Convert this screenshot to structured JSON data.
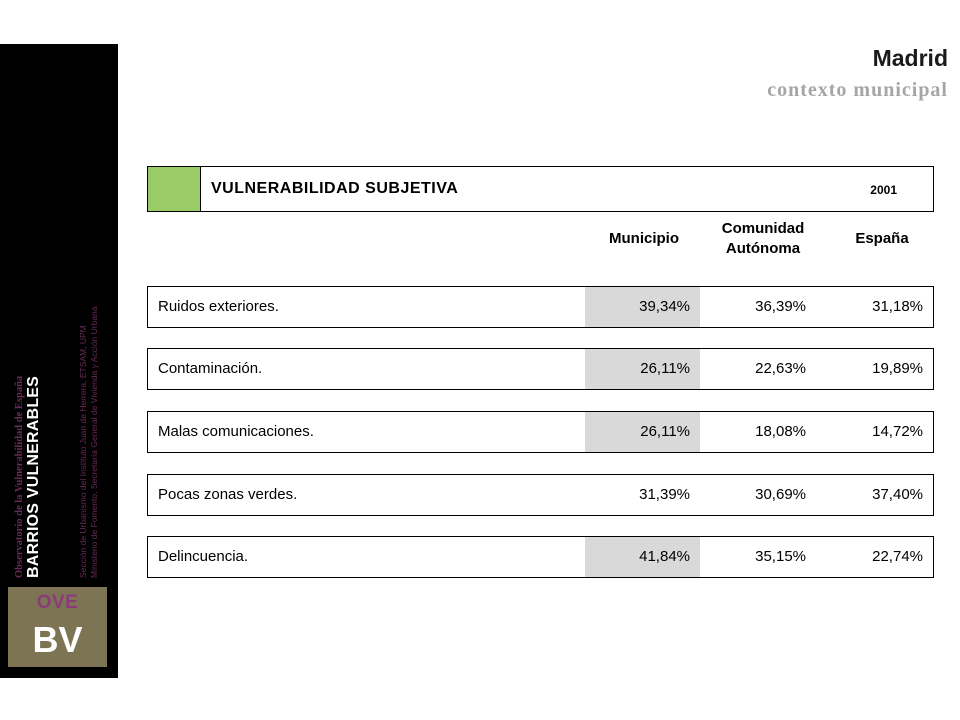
{
  "sidebar": {
    "observatorio": "Observatorio de la Vulnerabilidad de España",
    "barrios": "BARRIOS VULNERABLES",
    "seccion_line1": "Sección de Urbanismo del Instituto Juan de Herrera, ETSAM, UPM",
    "seccion_line2": "Ministerio de Fomento, Secretaría General de Vivienda y Acción Urbana",
    "logo_top": "OVE",
    "logo_bottom": "BV"
  },
  "header": {
    "title": "Madrid",
    "subtitle": "contexto municipal"
  },
  "table": {
    "section_title": "VULNERABILIDAD SUBJETIVA",
    "year": "2001",
    "accent_color": "#99cc66",
    "highlight_color": "#d9d9d9",
    "columns": {
      "municipio": "Municipio",
      "comunidad_line1": "Comunidad",
      "comunidad_line2": "Autónoma",
      "espana": "España"
    },
    "rows": [
      {
        "label": "Ruidos exteriores.",
        "municipio": "39,34%",
        "comunidad": "36,39%",
        "espana": "31,18%",
        "highlight": true
      },
      {
        "label": "Contaminación.",
        "municipio": "26,11%",
        "comunidad": "22,63%",
        "espana": "19,89%",
        "highlight": true
      },
      {
        "label": "Malas comunicaciones.",
        "municipio": "26,11%",
        "comunidad": "18,08%",
        "espana": "14,72%",
        "highlight": true
      },
      {
        "label": "Pocas zonas verdes.",
        "municipio": "31,39%",
        "comunidad": "30,69%",
        "espana": "37,40%",
        "highlight": false
      },
      {
        "label": "Delincuencia.",
        "municipio": "41,84%",
        "comunidad": "35,15%",
        "espana": "22,74%",
        "highlight": true
      }
    ]
  }
}
